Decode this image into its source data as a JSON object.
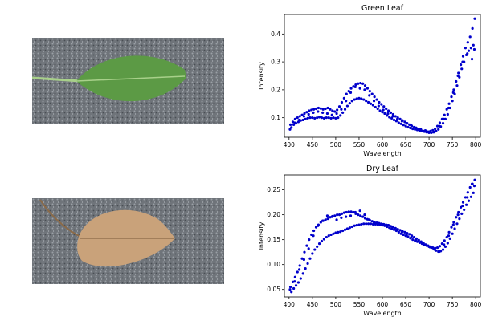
{
  "images": [
    {
      "subject": "green-leaf",
      "colors": {
        "leaf": "#5c9a45",
        "vein": "#a8d08a",
        "background": "#6f747a"
      }
    },
    {
      "subject": "dry-leaf",
      "colors": {
        "leaf": "#c9a27a",
        "vein": "#8a6a48",
        "background": "#6f747a"
      }
    }
  ],
  "chart_data": [
    {
      "type": "scatter",
      "title": "Green Leaf",
      "xlabel": "Wavelength",
      "ylabel": "Intensity",
      "xlim": [
        390,
        810
      ],
      "ylim": [
        0.03,
        0.47
      ],
      "xticks": [
        400,
        450,
        500,
        550,
        600,
        650,
        700,
        750,
        800
      ],
      "yticks": [
        0.1,
        0.2,
        0.3,
        0.4
      ],
      "ytick_labels": [
        "0.1",
        "0.2",
        "0.3",
        "0.4"
      ],
      "marker_color": "#0000cc",
      "grid": false,
      "series": [
        {
          "x": [
            403,
            408,
            413,
            418,
            423,
            428,
            433,
            438,
            443,
            448,
            453,
            458,
            463,
            468,
            473,
            478,
            483,
            488,
            493,
            498,
            503,
            508,
            513,
            518,
            523,
            528,
            533,
            538,
            543,
            548,
            553,
            558,
            563,
            568,
            573,
            578,
            583,
            588,
            593,
            598,
            603,
            608,
            613,
            618,
            623,
            628,
            633,
            638,
            643,
            648,
            653,
            658,
            663,
            668,
            673,
            678,
            683,
            688,
            693,
            698,
            703,
            708,
            713,
            718,
            723,
            728,
            733,
            738,
            743,
            748,
            753,
            758,
            763,
            768,
            773,
            778,
            783,
            788,
            793,
            798,
            405,
            410,
            415,
            420,
            425,
            430,
            435,
            440,
            445,
            450,
            455,
            460,
            465,
            470,
            475,
            480,
            485,
            490,
            495,
            500,
            505,
            510,
            515,
            520,
            525,
            530,
            535,
            540,
            545,
            550,
            555,
            560,
            565,
            570,
            575,
            580,
            585,
            590,
            595,
            600,
            605,
            610,
            615,
            620,
            625,
            630,
            635,
            640,
            645,
            650,
            655,
            660,
            665,
            670,
            675,
            680,
            685,
            690,
            695,
            700,
            705,
            710,
            715,
            720,
            725,
            730,
            735,
            740,
            745,
            750,
            755,
            760,
            765,
            770,
            775,
            780,
            785,
            790,
            795,
            402,
            412,
            422,
            432,
            442,
            452,
            462,
            472,
            482,
            492,
            502,
            512,
            522,
            532,
            542,
            552,
            562,
            572,
            582,
            592,
            602,
            612,
            622,
            632,
            642,
            652,
            662,
            672,
            682,
            692,
            702,
            712,
            722,
            732,
            742,
            752,
            762,
            772,
            782,
            792,
            797
          ],
          "y": [
            0.075,
            0.085,
            0.095,
            0.1,
            0.105,
            0.11,
            0.115,
            0.12,
            0.125,
            0.128,
            0.13,
            0.132,
            0.135,
            0.133,
            0.13,
            0.132,
            0.135,
            0.13,
            0.125,
            0.122,
            0.128,
            0.14,
            0.155,
            0.17,
            0.185,
            0.195,
            0.205,
            0.212,
            0.218,
            0.222,
            0.224,
            0.222,
            0.215,
            0.205,
            0.195,
            0.185,
            0.175,
            0.165,
            0.155,
            0.148,
            0.14,
            0.132,
            0.125,
            0.118,
            0.112,
            0.105,
            0.1,
            0.095,
            0.09,
            0.085,
            0.08,
            0.075,
            0.07,
            0.066,
            0.062,
            0.058,
            0.055,
            0.052,
            0.05,
            0.05,
            0.052,
            0.055,
            0.06,
            0.07,
            0.082,
            0.095,
            0.11,
            0.13,
            0.15,
            0.175,
            0.2,
            0.23,
            0.26,
            0.29,
            0.32,
            0.35,
            0.37,
            0.39,
            0.42,
            0.455,
            0.065,
            0.075,
            0.08,
            0.085,
            0.09,
            0.092,
            0.095,
            0.098,
            0.1,
            0.1,
            0.098,
            0.1,
            0.102,
            0.1,
            0.098,
            0.1,
            0.1,
            0.098,
            0.1,
            0.098,
            0.1,
            0.108,
            0.118,
            0.13,
            0.142,
            0.152,
            0.16,
            0.165,
            0.168,
            0.17,
            0.168,
            0.165,
            0.16,
            0.155,
            0.15,
            0.145,
            0.138,
            0.132,
            0.125,
            0.12,
            0.115,
            0.108,
            0.102,
            0.098,
            0.092,
            0.088,
            0.082,
            0.078,
            0.074,
            0.07,
            0.066,
            0.063,
            0.06,
            0.058,
            0.056,
            0.054,
            0.052,
            0.05,
            0.048,
            0.046,
            0.046,
            0.048,
            0.052,
            0.058,
            0.068,
            0.08,
            0.095,
            0.112,
            0.135,
            0.16,
            0.185,
            0.215,
            0.245,
            0.275,
            0.3,
            0.325,
            0.34,
            0.35,
            0.36,
            0.058,
            0.082,
            0.092,
            0.105,
            0.112,
            0.118,
            0.122,
            0.118,
            0.115,
            0.11,
            0.115,
            0.13,
            0.16,
            0.19,
            0.21,
            0.205,
            0.2,
            0.18,
            0.16,
            0.142,
            0.128,
            0.115,
            0.105,
            0.095,
            0.088,
            0.08,
            0.072,
            0.064,
            0.06,
            0.054,
            0.048,
            0.05,
            0.07,
            0.095,
            0.135,
            0.19,
            0.25,
            0.3,
            0.33,
            0.31,
            0.345
          ]
        }
      ]
    },
    {
      "type": "scatter",
      "title": "Dry Leaf",
      "xlabel": "Wavelength",
      "ylabel": "Intensity",
      "xlim": [
        390,
        810
      ],
      "ylim": [
        0.035,
        0.28
      ],
      "xticks": [
        400,
        450,
        500,
        550,
        600,
        650,
        700,
        750,
        800
      ],
      "yticks": [
        0.05,
        0.1,
        0.15,
        0.2,
        0.25
      ],
      "ytick_labels": [
        "0.05",
        "0.10",
        "0.15",
        "0.20",
        "0.25"
      ],
      "marker_color": "#0000cc",
      "grid": false,
      "series": [
        {
          "x": [
            403,
            408,
            413,
            418,
            423,
            428,
            433,
            438,
            443,
            448,
            453,
            458,
            463,
            468,
            473,
            478,
            483,
            488,
            493,
            498,
            503,
            508,
            513,
            518,
            523,
            528,
            533,
            538,
            543,
            548,
            553,
            558,
            563,
            568,
            573,
            578,
            583,
            588,
            593,
            598,
            603,
            608,
            613,
            618,
            623,
            628,
            633,
            638,
            643,
            648,
            653,
            658,
            663,
            668,
            673,
            678,
            683,
            688,
            693,
            698,
            703,
            708,
            713,
            718,
            723,
            728,
            733,
            738,
            743,
            748,
            753,
            758,
            763,
            768,
            773,
            778,
            783,
            788,
            793,
            798,
            405,
            410,
            415,
            420,
            425,
            430,
            435,
            440,
            445,
            450,
            455,
            460,
            465,
            470,
            475,
            480,
            485,
            490,
            495,
            500,
            505,
            510,
            515,
            520,
            525,
            530,
            535,
            540,
            545,
            550,
            555,
            560,
            565,
            570,
            575,
            580,
            585,
            590,
            595,
            600,
            605,
            610,
            615,
            620,
            625,
            630,
            635,
            640,
            645,
            650,
            655,
            660,
            665,
            670,
            675,
            680,
            685,
            690,
            695,
            700,
            705,
            710,
            715,
            720,
            725,
            730,
            735,
            740,
            745,
            750,
            755,
            760,
            765,
            770,
            775,
            780,
            785,
            790,
            795,
            402,
            412,
            422,
            432,
            442,
            452,
            462,
            472,
            482,
            492,
            502,
            512,
            522,
            532,
            542,
            552,
            562,
            572,
            582,
            592,
            602,
            612,
            622,
            632,
            642,
            652,
            662,
            672,
            682,
            692,
            702,
            712,
            722,
            732,
            742,
            752,
            762,
            772,
            782,
            792,
            797
          ],
          "y": [
            0.055,
            0.065,
            0.075,
            0.085,
            0.098,
            0.112,
            0.125,
            0.138,
            0.15,
            0.16,
            0.168,
            0.175,
            0.18,
            0.185,
            0.188,
            0.19,
            0.192,
            0.195,
            0.197,
            0.198,
            0.2,
            0.2,
            0.202,
            0.204,
            0.205,
            0.206,
            0.206,
            0.205,
            0.202,
            0.2,
            0.198,
            0.196,
            0.193,
            0.191,
            0.189,
            0.187,
            0.185,
            0.184,
            0.183,
            0.182,
            0.181,
            0.18,
            0.179,
            0.177,
            0.175,
            0.173,
            0.171,
            0.169,
            0.167,
            0.165,
            0.163,
            0.161,
            0.158,
            0.155,
            0.152,
            0.149,
            0.146,
            0.143,
            0.14,
            0.138,
            0.136,
            0.134,
            0.133,
            0.134,
            0.137,
            0.142,
            0.148,
            0.155,
            0.165,
            0.175,
            0.185,
            0.195,
            0.205,
            0.215,
            0.225,
            0.235,
            0.245,
            0.255,
            0.262,
            0.27,
            0.045,
            0.052,
            0.058,
            0.064,
            0.072,
            0.082,
            0.092,
            0.102,
            0.112,
            0.122,
            0.13,
            0.136,
            0.142,
            0.147,
            0.151,
            0.155,
            0.158,
            0.16,
            0.162,
            0.164,
            0.165,
            0.166,
            0.168,
            0.17,
            0.172,
            0.174,
            0.176,
            0.178,
            0.179,
            0.18,
            0.181,
            0.182,
            0.182,
            0.182,
            0.182,
            0.181,
            0.181,
            0.18,
            0.18,
            0.179,
            0.178,
            0.176,
            0.174,
            0.172,
            0.17,
            0.168,
            0.165,
            0.162,
            0.16,
            0.158,
            0.156,
            0.153,
            0.15,
            0.148,
            0.146,
            0.144,
            0.142,
            0.14,
            0.138,
            0.136,
            0.134,
            0.131,
            0.128,
            0.126,
            0.127,
            0.13,
            0.136,
            0.143,
            0.152,
            0.162,
            0.172,
            0.182,
            0.192,
            0.202,
            0.21,
            0.22,
            0.228,
            0.236,
            0.244,
            0.05,
            0.066,
            0.09,
            0.11,
            0.132,
            0.158,
            0.178,
            0.188,
            0.198,
            0.196,
            0.19,
            0.194,
            0.196,
            0.198,
            0.205,
            0.208,
            0.2,
            0.19,
            0.185,
            0.183,
            0.181,
            0.179,
            0.176,
            0.17,
            0.165,
            0.16,
            0.155,
            0.15,
            0.145,
            0.14,
            0.135,
            0.13,
            0.126,
            0.14,
            0.158,
            0.18,
            0.2,
            0.218,
            0.235,
            0.262,
            0.258
          ]
        }
      ]
    }
  ]
}
